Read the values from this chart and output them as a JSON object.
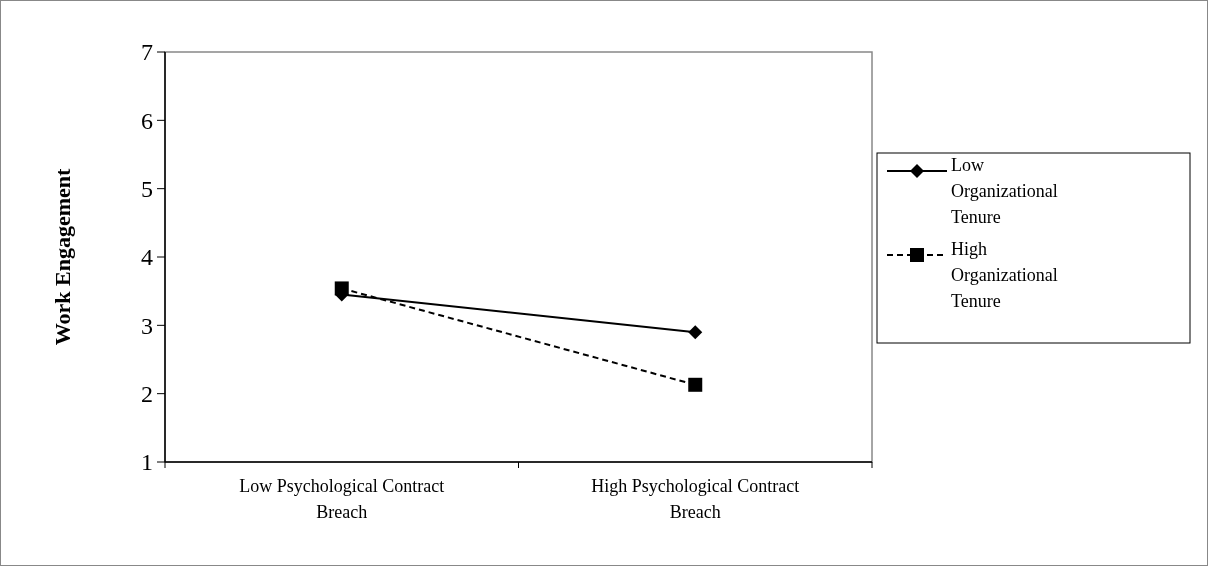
{
  "chart_data": {
    "type": "line",
    "ylabel": "Work Engagement",
    "categories": [
      "Low Psychological Contract Breach",
      "High Psychological Contract Breach"
    ],
    "series": [
      {
        "name": "Low Organizational Tenure",
        "color": "#000000",
        "values": [
          3.45,
          2.9
        ],
        "marker": "diamond",
        "line_style": "solid"
      },
      {
        "name": "High Organizational Tenure",
        "color": "#000000",
        "values": [
          3.54,
          2.13
        ],
        "marker": "square",
        "line_style": "dashed"
      }
    ],
    "ylim": [
      1,
      7
    ],
    "yticks": [
      1,
      2,
      3,
      4,
      5,
      6,
      7
    ],
    "grid": false,
    "legend": "right"
  }
}
